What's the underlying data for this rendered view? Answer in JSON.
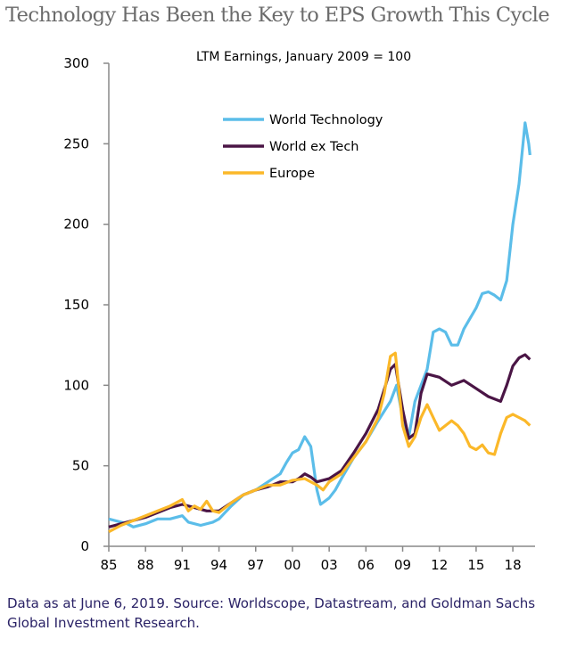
{
  "chart_data": {
    "type": "line",
    "title": "Technology Has Been the Key to EPS Growth This Cycle",
    "subtitle": "LTM Earnings, January 2009 = 100",
    "xlabel": "",
    "ylabel": "",
    "ylim": [
      0,
      300
    ],
    "xlim": [
      1985,
      2019.5
    ],
    "yticks": [
      "0",
      "50",
      "100",
      "150",
      "200",
      "250",
      "300"
    ],
    "xticks": [
      "85",
      "88",
      "91",
      "94",
      "97",
      "00",
      "03",
      "06",
      "09",
      "12",
      "15",
      "18"
    ],
    "legend_position": "top-left",
    "grid": false,
    "series": [
      {
        "name": "World Technology",
        "color": "#5bbde9",
        "x": [
          1985,
          1986.5,
          1987,
          1988,
          1989,
          1990,
          1991,
          1991.5,
          1992.5,
          1993.5,
          1994,
          1995,
          1996,
          1997,
          1998,
          1999,
          1999.5,
          2000,
          2000.5,
          2001,
          2001.5,
          2002,
          2002.3,
          2003,
          2003.5,
          2004,
          2005,
          2006,
          2007,
          2008,
          2008.5,
          2009,
          2009.5,
          2010,
          2011,
          2011.5,
          2012,
          2012.5,
          2013,
          2013.5,
          2014,
          2015,
          2015.5,
          2016,
          2016.5,
          2017,
          2017.5,
          2018,
          2018.5,
          2019,
          2019.3,
          2019.4
        ],
        "y": [
          17,
          14,
          12,
          14,
          17,
          17,
          19,
          15,
          13,
          15,
          17,
          25,
          32,
          35,
          40,
          45,
          52,
          58,
          60,
          68,
          62,
          35,
          26,
          30,
          35,
          42,
          55,
          65,
          78,
          90,
          100,
          80,
          68,
          90,
          110,
          133,
          135,
          133,
          125,
          125,
          135,
          148,
          157,
          158,
          156,
          153,
          165,
          200,
          225,
          263,
          250,
          243
        ]
      },
      {
        "name": "World ex Tech",
        "color": "#4a1545",
        "x": [
          1985,
          1986,
          1987,
          1988,
          1989,
          1990,
          1991,
          1992,
          1993,
          1994,
          1995,
          1996,
          1997,
          1998,
          1999,
          2000,
          2000.5,
          2001,
          2001.5,
          2002,
          2003,
          2004,
          2005,
          2006,
          2007,
          2008,
          2008.4,
          2009,
          2009.5,
          2010,
          2010.5,
          2011,
          2012,
          2013,
          2014,
          2015,
          2016,
          2017,
          2017.5,
          2018,
          2018.5,
          2019,
          2019.4
        ],
        "y": [
          12,
          14,
          16,
          18,
          21,
          24,
          26,
          24,
          22,
          22,
          27,
          32,
          35,
          37,
          40,
          40,
          42,
          45,
          43,
          40,
          42,
          47,
          58,
          70,
          85,
          110,
          113,
          85,
          67,
          70,
          95,
          107,
          105,
          100,
          103,
          98,
          93,
          90,
          100,
          112,
          117,
          119,
          116
        ]
      },
      {
        "name": "Europe",
        "color": "#fbb829",
        "x": [
          1985,
          1986,
          1987,
          1988,
          1989,
          1990,
          1991,
          1991.5,
          1992,
          1992.5,
          1993,
          1993.5,
          1994,
          1995,
          1996,
          1997,
          1998,
          1999,
          2000,
          2001,
          2002,
          2002.5,
          2003,
          2004,
          2005,
          2006,
          2007,
          2007.5,
          2008,
          2008.4,
          2009,
          2009.5,
          2010,
          2010.5,
          2011,
          2011.5,
          2012,
          2012.5,
          2013,
          2013.5,
          2014,
          2014.5,
          2015,
          2015.5,
          2016,
          2016.5,
          2017,
          2017.5,
          2018,
          2018.5,
          2019,
          2019.4
        ],
        "y": [
          9,
          13,
          16,
          19,
          22,
          25,
          29,
          22,
          25,
          23,
          28,
          22,
          21,
          27,
          32,
          35,
          38,
          38,
          41,
          42,
          38,
          35,
          40,
          45,
          55,
          65,
          80,
          95,
          118,
          120,
          75,
          62,
          68,
          80,
          88,
          80,
          72,
          75,
          78,
          75,
          70,
          62,
          60,
          63,
          58,
          57,
          70,
          80,
          82,
          80,
          78,
          75
        ]
      }
    ]
  },
  "footnote": "Data as at June 6, 2019. Source: Worldscope, Datastream, and Goldman Sachs Global Investment Research."
}
